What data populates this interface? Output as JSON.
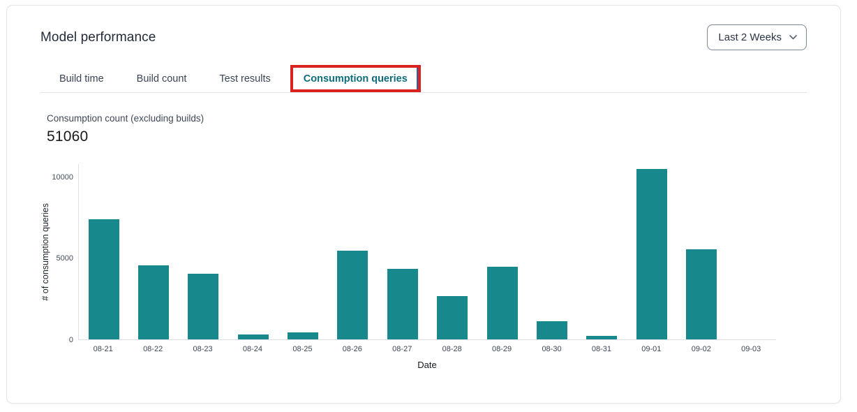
{
  "header": {
    "title": "Model performance"
  },
  "period_selector": {
    "value": "Last 2 Weeks",
    "icon": "chevron-down"
  },
  "tabs": [
    {
      "label": "Build time",
      "active": false
    },
    {
      "label": "Build count",
      "active": false
    },
    {
      "label": "Test results",
      "active": false
    },
    {
      "label": "Consumption queries",
      "active": true,
      "highlighted": true
    }
  ],
  "kpi": {
    "label": "Consumption count (excluding builds)",
    "value": "51060"
  },
  "chart_data": {
    "type": "bar",
    "title": "",
    "categories": [
      "08-21",
      "08-22",
      "08-23",
      "08-24",
      "08-25",
      "08-26",
      "08-27",
      "08-28",
      "08-29",
      "08-30",
      "08-31",
      "09-01",
      "09-02",
      "09-03"
    ],
    "values": [
      7420,
      4570,
      4030,
      300,
      430,
      5470,
      4340,
      2680,
      4460,
      1120,
      200,
      10480,
      5560,
      0
    ],
    "xlabel": "Date",
    "ylabel": "# of consumption queries",
    "yticks": [
      0,
      5000,
      10000
    ],
    "ylim": [
      0,
      10800
    ],
    "grid": false,
    "legend": false,
    "bar_color": "#17898c"
  },
  "colors": {
    "accent_teal": "#17898c",
    "active_tab_text": "#0e6d7b",
    "annotation_red": "#da231e",
    "annotation_blue": "#2e5fae"
  }
}
